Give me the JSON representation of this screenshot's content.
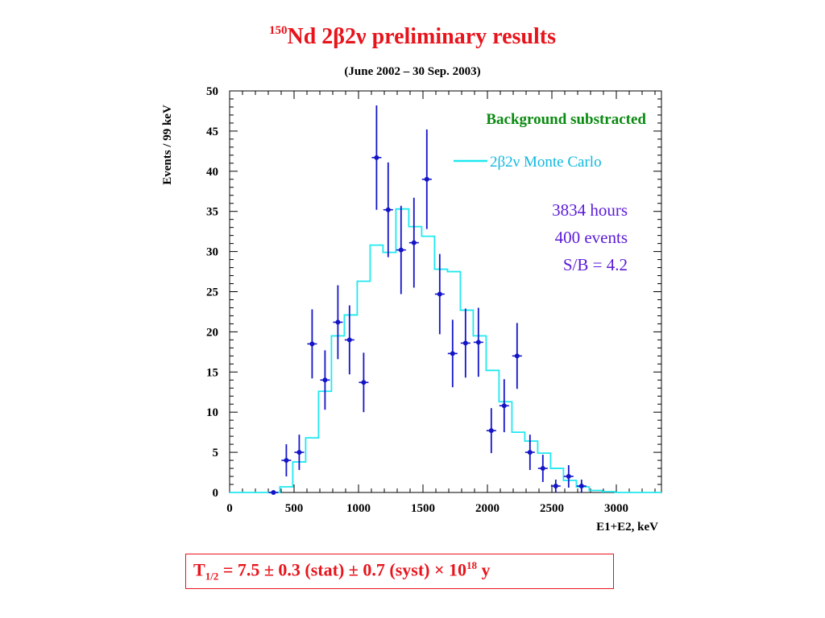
{
  "title": {
    "superscript": "150",
    "main": "Nd 2β2ν preliminary results"
  },
  "subtitle": "(June 2002 –  30 Sep. 2003)",
  "result": {
    "prefix": "T",
    "subscript": "1/2",
    "body": " = 7.5 ± 0.3 (stat) ± 0.7 (syst) × 10",
    "exponent": "18",
    "suffix": " y"
  },
  "colors": {
    "title": "#e8141c",
    "data_points": "#1414c8",
    "monte_carlo": "#20e8f0",
    "annotation_green": "#0a8a10",
    "info_text": "#5a1ad8",
    "legend_text": "#10b8e0"
  },
  "chart_data": {
    "type": "scatter",
    "xlabel": "E1+E2, keV",
    "ylabel": "Events / 99 keV",
    "xlim": [
      0,
      3350
    ],
    "ylim": [
      0,
      50
    ],
    "x_ticks": [
      0,
      500,
      1000,
      1500,
      2000,
      2500,
      3000
    ],
    "y_ticks": [
      0,
      5,
      10,
      15,
      20,
      25,
      30,
      35,
      40,
      45,
      50
    ],
    "grid": false,
    "annotations": [
      "Background substracted",
      "3834 hours",
      "400 events",
      "S/B = 4.2"
    ],
    "series": [
      {
        "name": "data",
        "type": "errorbar",
        "points": [
          {
            "x": 340,
            "y": 0,
            "err": 0
          },
          {
            "x": 440,
            "y": 4,
            "err": 2
          },
          {
            "x": 540,
            "y": 5,
            "err": 2.2
          },
          {
            "x": 640,
            "y": 18.5,
            "err": 4.3
          },
          {
            "x": 740,
            "y": 14,
            "err": 3.7
          },
          {
            "x": 840,
            "y": 21.2,
            "err": 4.6
          },
          {
            "x": 930,
            "y": 19,
            "err": 4.3
          },
          {
            "x": 1040,
            "y": 13.7,
            "err": 3.7
          },
          {
            "x": 1140,
            "y": 41.7,
            "err": 6.5
          },
          {
            "x": 1230,
            "y": 35.2,
            "err": 5.9
          },
          {
            "x": 1330,
            "y": 30.2,
            "err": 5.5
          },
          {
            "x": 1430,
            "y": 31.1,
            "err": 5.6
          },
          {
            "x": 1530,
            "y": 39,
            "err": 6.2
          },
          {
            "x": 1630,
            "y": 24.7,
            "err": 5
          },
          {
            "x": 1730,
            "y": 17.3,
            "err": 4.2
          },
          {
            "x": 1830,
            "y": 18.6,
            "err": 4.3
          },
          {
            "x": 1930,
            "y": 18.7,
            "err": 4.3
          },
          {
            "x": 2030,
            "y": 7.7,
            "err": 2.8
          },
          {
            "x": 2130,
            "y": 10.8,
            "err": 3.3
          },
          {
            "x": 2230,
            "y": 17,
            "err": 4.1
          },
          {
            "x": 2330,
            "y": 5,
            "err": 2.2
          },
          {
            "x": 2430,
            "y": 3,
            "err": 1.7
          },
          {
            "x": 2530,
            "y": 0.8,
            "err": 0.8
          },
          {
            "x": 2630,
            "y": 2,
            "err": 1.4
          },
          {
            "x": 2730,
            "y": 0.8,
            "err": 0.8
          }
        ]
      },
      {
        "name": "2β2ν Monte Carlo",
        "type": "step",
        "edges": [
          0,
          390,
          490,
          590,
          690,
          790,
          890,
          990,
          1090,
          1190,
          1290,
          1390,
          1490,
          1590,
          1690,
          1790,
          1890,
          1990,
          2090,
          2190,
          2290,
          2390,
          2490,
          2590,
          2690,
          2790,
          2890,
          2990,
          3090,
          3350
        ],
        "values": [
          0,
          0.7,
          3.8,
          6.8,
          12.6,
          19.5,
          22.1,
          26.3,
          30.8,
          29.9,
          35.3,
          33.1,
          31.9,
          27.8,
          27.5,
          22.7,
          19.5,
          15.2,
          11.3,
          7.5,
          6.4,
          4.9,
          3.0,
          1.5,
          0.7,
          0.25,
          0.1,
          0,
          0
        ]
      }
    ]
  }
}
